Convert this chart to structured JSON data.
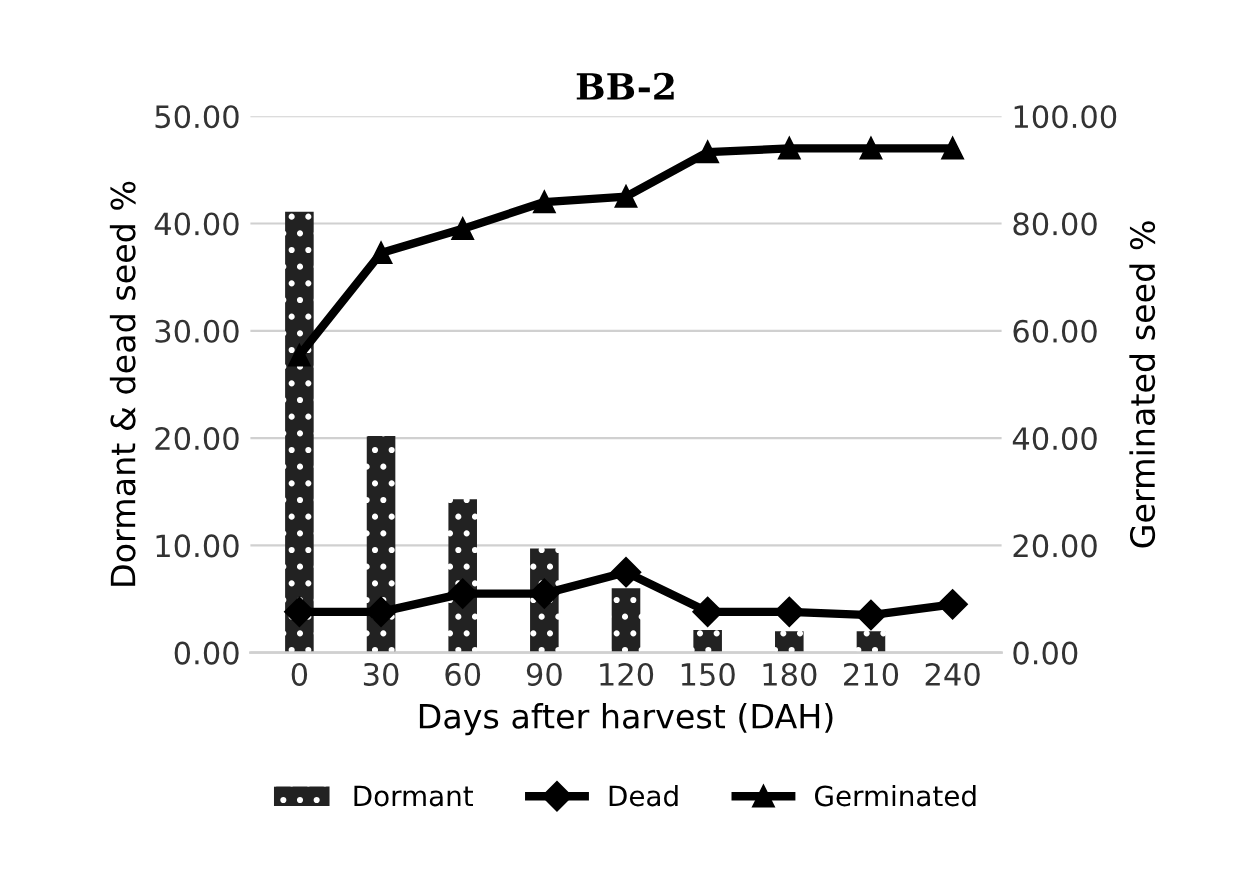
{
  "chart_data": {
    "type": "bar",
    "title": "BB-2",
    "xlabel": "Days after harvest (DAH)",
    "ylabel": "Dormant & dead seed %",
    "y2label": "Germinated seed %",
    "categories": [
      "0",
      "30",
      "60",
      "90",
      "120",
      "150",
      "180",
      "210",
      "240"
    ],
    "series": [
      {
        "name": "Dormant",
        "color": "#222222",
        "values": [
          41.1,
          20.2,
          14.3,
          9.7,
          6.0,
          2.1,
          2.0,
          2.0,
          null
        ]
      },
      {
        "name": "Dead",
        "type": "line",
        "color": "#000000",
        "marker": "diamond",
        "values": [
          3.8,
          3.8,
          5.5,
          5.5,
          7.5,
          3.8,
          3.8,
          3.5,
          4.5
        ]
      },
      {
        "name": "Germinated",
        "type": "line",
        "color": "#000000",
        "marker": "triangle",
        "axis": "y2",
        "values": [
          55.4,
          74.5,
          79,
          84,
          85,
          93.3,
          94,
          94,
          94
        ]
      }
    ],
    "ylim": [
      0,
      50
    ],
    "yticks": [
      {
        "value": 0,
        "label": "0.00"
      },
      {
        "value": 10,
        "label": "10.00"
      },
      {
        "value": 20,
        "label": "20.00"
      },
      {
        "value": 30,
        "label": "30.00"
      },
      {
        "value": 40,
        "label": "40.00"
      },
      {
        "value": 50,
        "label": "50.00"
      }
    ],
    "y2lim": [
      0,
      100
    ],
    "y2ticks": [
      {
        "value": 0,
        "label": "0.00"
      },
      {
        "value": 20,
        "label": "20.00"
      },
      {
        "value": 40,
        "label": "40.00"
      },
      {
        "value": 60,
        "label": "60.00"
      },
      {
        "value": 80,
        "label": "80.00"
      },
      {
        "value": 100,
        "label": "100.00"
      }
    ],
    "grid": "y",
    "legend": "bottom"
  }
}
